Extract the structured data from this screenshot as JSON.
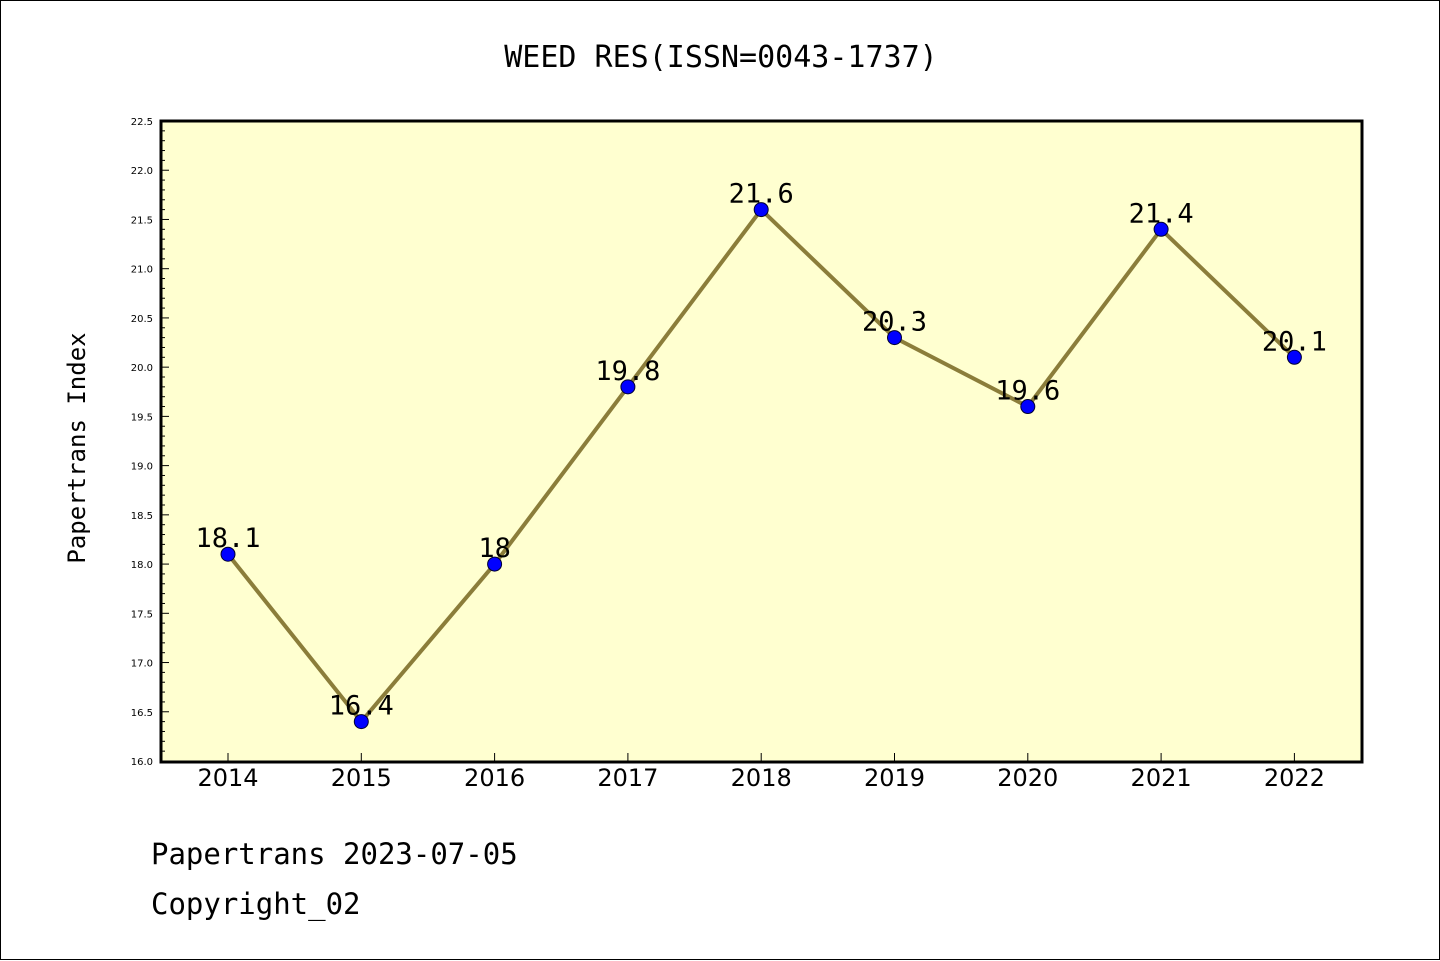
{
  "chart_data": {
    "type": "line",
    "title": "WEED RES(ISSN=0043-1737)",
    "ylabel": "Papertrans Index",
    "xlabel": "",
    "categories": [
      "2014",
      "2015",
      "2016",
      "2017",
      "2018",
      "2019",
      "2020",
      "2021",
      "2022"
    ],
    "series": [
      {
        "values": [
          18.1,
          16.4,
          18,
          19.8,
          21.6,
          20.3,
          19.6,
          21.4,
          20.1
        ]
      }
    ],
    "data_labels": [
      "18.1",
      "16.4",
      "18",
      "19.8",
      "21.6",
      "20.3",
      "19.6",
      "21.4",
      "20.1"
    ],
    "ylim": [
      16.0,
      22.5
    ],
    "yticks": [
      "16.0",
      "16.5",
      "17.0",
      "17.5",
      "18.0",
      "18.5",
      "19.0",
      "19.5",
      "20.0",
      "20.5",
      "21.0",
      "21.5",
      "22.0",
      "22.5"
    ],
    "grid": false,
    "plot_background": "#ffffd0",
    "line_color": "#8b7d3a",
    "marker_color": "#0000ff"
  },
  "footer": {
    "line1": "Papertrans 2023-07-05",
    "line2": "Copyright_02"
  }
}
